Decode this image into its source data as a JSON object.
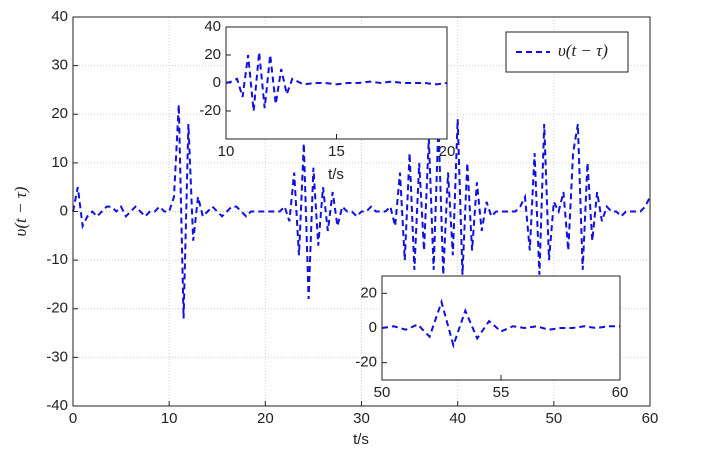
{
  "chart_data": [
    {
      "type": "line",
      "xlabel": "t/s",
      "ylabel": "υ(t − τ)",
      "grid": true,
      "legend": "upper right",
      "xlim": [
        0,
        60
      ],
      "ylim": [
        -40,
        40
      ],
      "xticks": [
        0,
        10,
        20,
        30,
        40,
        50,
        60
      ],
      "yticks": [
        -40,
        -30,
        -20,
        -10,
        0,
        10,
        20,
        30,
        40
      ],
      "x": [
        0,
        0.5,
        1,
        1.5,
        2,
        2.5,
        3,
        3.5,
        4,
        4.5,
        5,
        5.5,
        6,
        6.5,
        7,
        7.5,
        8,
        8.5,
        9,
        9.5,
        10,
        10.5,
        11,
        11.5,
        12,
        12.5,
        13,
        13.5,
        14,
        14.5,
        15,
        15.5,
        16,
        16.5,
        17,
        17.5,
        18,
        18.5,
        19,
        19.5,
        20,
        20.5,
        21,
        21.5,
        22,
        22.5,
        23,
        23.5,
        24,
        24.5,
        25,
        25.5,
        26,
        26.5,
        27,
        27.5,
        28,
        28.5,
        29,
        29.5,
        30,
        30.5,
        31,
        31.5,
        32,
        32.5,
        33,
        33.5,
        34,
        34.5,
        35,
        35.5,
        36,
        36.5,
        37,
        37.5,
        38,
        38.5,
        39,
        39.5,
        40,
        40.5,
        41,
        41.5,
        42,
        42.5,
        43,
        43.5,
        44,
        44.5,
        45,
        45.5,
        46,
        46.5,
        47,
        47.5,
        48,
        48.5,
        49,
        49.5,
        50,
        50.5,
        51,
        51.5,
        52,
        52.5,
        53,
        53.5,
        54,
        54.5,
        55,
        55.5,
        56,
        56.5,
        57,
        57.5,
        58,
        58.5,
        59,
        59.5,
        60
      ],
      "series": [
        {
          "name": "υ(t − τ)",
          "color": "#1010e0",
          "values": [
            0,
            5,
            -3,
            -1,
            0,
            -1,
            0,
            1,
            1,
            0,
            1,
            -1,
            0,
            1,
            0,
            -1,
            0,
            0,
            1,
            0,
            0,
            3,
            22,
            -22,
            18,
            -6,
            3,
            -1,
            0,
            1,
            0,
            -1,
            0,
            1,
            1,
            0,
            -1,
            0,
            0,
            0,
            0,
            0,
            0,
            0,
            1,
            -2,
            8,
            -9,
            14,
            -18,
            9,
            -7,
            5,
            -4,
            4,
            -3,
            1,
            0,
            0,
            -1,
            0,
            0,
            1,
            0,
            0,
            0,
            1,
            -3,
            8,
            -10,
            12,
            -12,
            10,
            -8,
            15,
            -12,
            18,
            -13,
            8,
            -9,
            19,
            -13,
            10,
            -8,
            6,
            -4,
            2,
            -1,
            0,
            0,
            0,
            0,
            0,
            1,
            3,
            -8,
            12,
            -13,
            18,
            -10,
            2,
            0,
            4,
            -8,
            12,
            18,
            -12,
            10,
            -6,
            4,
            -2,
            1,
            0,
            0,
            -1,
            0,
            0,
            0,
            0,
            1,
            3
          ]
        }
      ]
    },
    {
      "type": "line",
      "xlabel": "t/s",
      "xlim": [
        10,
        20
      ],
      "ylim": [
        -40,
        40
      ],
      "xticks": [
        10,
        15,
        20
      ],
      "yticks": [
        -20,
        0,
        20,
        40
      ],
      "x": [
        10,
        10.25,
        10.5,
        10.75,
        11,
        11.25,
        11.5,
        11.75,
        12,
        12.25,
        12.5,
        12.75,
        13,
        13.5,
        14,
        14.5,
        15,
        15.5,
        16,
        16.5,
        17,
        17.5,
        18,
        18.5,
        19,
        19.5,
        20
      ],
      "series": [
        {
          "color": "#1010e0",
          "values": [
            0,
            1,
            3,
            -10,
            20,
            -20,
            22,
            -18,
            20,
            -15,
            10,
            -8,
            3,
            -1,
            0,
            0,
            -1,
            0,
            0,
            1,
            0,
            1,
            0,
            0,
            0,
            -1,
            0
          ]
        }
      ]
    },
    {
      "type": "line",
      "xlim": [
        50,
        60
      ],
      "ylim": [
        -30,
        30
      ],
      "xticks": [
        50,
        55,
        60
      ],
      "yticks": [
        -20,
        0,
        20
      ],
      "x": [
        50,
        50.5,
        51,
        51.5,
        52,
        52.5,
        53,
        53.5,
        54,
        54.5,
        55,
        55.5,
        56,
        56.5,
        57,
        57.5,
        58,
        58.5,
        59,
        59.5,
        60
      ],
      "series": [
        {
          "color": "#1010e0",
          "values": [
            0,
            1,
            -1,
            2,
            -5,
            15,
            -10,
            10,
            -6,
            4,
            -2,
            1,
            0,
            1,
            -1,
            0,
            0,
            1,
            0,
            1,
            1
          ]
        }
      ]
    }
  ]
}
